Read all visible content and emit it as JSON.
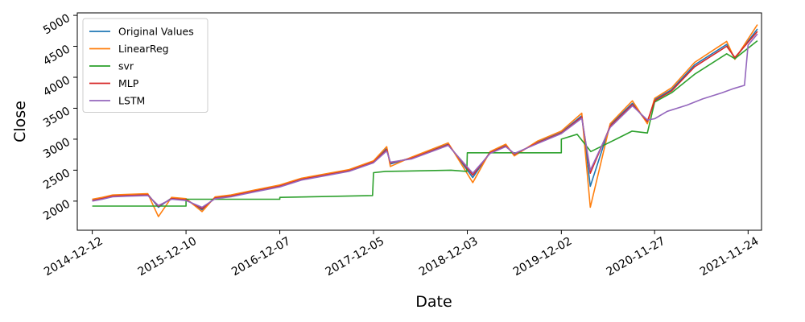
{
  "chart_data": {
    "type": "line",
    "title": "",
    "xlabel": "Date",
    "ylabel": "Close",
    "x_range": [
      "2014-10-15",
      "2022-01-15"
    ],
    "ylim": [
      1530,
      5040
    ],
    "x_ticks": [
      "2014-12-12",
      "2015-12-10",
      "2016-12-07",
      "2017-12-05",
      "2018-12-03",
      "2019-12-02",
      "2020-11-27",
      "2021-11-24"
    ],
    "y_ticks": [
      2000,
      2500,
      3000,
      3500,
      4000,
      4500,
      5000
    ],
    "grid": false,
    "legend_position": "top-left",
    "series": [
      {
        "name": "Original Values",
        "color": "#1f77b4",
        "points": [
          [
            "2014-12-12",
            2020
          ],
          [
            "2015-01-20",
            2050
          ],
          [
            "2015-03-01",
            2090
          ],
          [
            "2015-05-01",
            2100
          ],
          [
            "2015-07-15",
            2110
          ],
          [
            "2015-08-25",
            1900
          ],
          [
            "2015-10-15",
            2050
          ],
          [
            "2015-12-10",
            2030
          ],
          [
            "2016-02-10",
            1860
          ],
          [
            "2016-04-01",
            2060
          ],
          [
            "2016-06-01",
            2090
          ],
          [
            "2016-09-01",
            2170
          ],
          [
            "2016-12-07",
            2250
          ],
          [
            "2017-03-01",
            2360
          ],
          [
            "2017-06-01",
            2430
          ],
          [
            "2017-09-01",
            2500
          ],
          [
            "2017-12-05",
            2640
          ],
          [
            "2018-01-25",
            2850
          ],
          [
            "2018-02-08",
            2600
          ],
          [
            "2018-05-01",
            2700
          ],
          [
            "2018-09-20",
            2920
          ],
          [
            "2018-12-24",
            2380
          ],
          [
            "2019-03-01",
            2790
          ],
          [
            "2019-05-01",
            2900
          ],
          [
            "2019-06-03",
            2750
          ],
          [
            "2019-09-01",
            2950
          ],
          [
            "2019-12-02",
            3110
          ],
          [
            "2020-02-19",
            3380
          ],
          [
            "2020-03-23",
            2240
          ],
          [
            "2020-06-08",
            3230
          ],
          [
            "2020-09-02",
            3580
          ],
          [
            "2020-10-30",
            3270
          ],
          [
            "2020-11-27",
            3640
          ],
          [
            "2021-02-01",
            3800
          ],
          [
            "2021-05-01",
            4200
          ],
          [
            "2021-09-02",
            4530
          ],
          [
            "2021-10-04",
            4300
          ],
          [
            "2021-12-30",
            4780
          ]
        ]
      },
      {
        "name": "LinearReg",
        "color": "#ff7f0e",
        "points": [
          [
            "2014-12-12",
            2030
          ],
          [
            "2015-01-20",
            2060
          ],
          [
            "2015-03-01",
            2100
          ],
          [
            "2015-05-01",
            2110
          ],
          [
            "2015-07-15",
            2120
          ],
          [
            "2015-08-25",
            1750
          ],
          [
            "2015-10-15",
            2060
          ],
          [
            "2015-12-10",
            2040
          ],
          [
            "2016-02-10",
            1830
          ],
          [
            "2016-04-01",
            2070
          ],
          [
            "2016-06-01",
            2100
          ],
          [
            "2016-09-01",
            2180
          ],
          [
            "2016-12-07",
            2260
          ],
          [
            "2017-03-01",
            2370
          ],
          [
            "2017-06-01",
            2440
          ],
          [
            "2017-09-01",
            2510
          ],
          [
            "2017-12-05",
            2650
          ],
          [
            "2018-01-25",
            2880
          ],
          [
            "2018-02-08",
            2560
          ],
          [
            "2018-05-01",
            2710
          ],
          [
            "2018-09-20",
            2940
          ],
          [
            "2018-12-24",
            2300
          ],
          [
            "2019-03-01",
            2800
          ],
          [
            "2019-05-01",
            2920
          ],
          [
            "2019-06-03",
            2730
          ],
          [
            "2019-09-01",
            2970
          ],
          [
            "2019-12-02",
            3130
          ],
          [
            "2020-02-19",
            3420
          ],
          [
            "2020-03-23",
            1900
          ],
          [
            "2020-06-08",
            3250
          ],
          [
            "2020-09-02",
            3620
          ],
          [
            "2020-10-30",
            3250
          ],
          [
            "2020-11-27",
            3660
          ],
          [
            "2021-02-01",
            3830
          ],
          [
            "2021-05-01",
            4240
          ],
          [
            "2021-09-02",
            4580
          ],
          [
            "2021-10-04",
            4290
          ],
          [
            "2021-12-30",
            4850
          ]
        ]
      },
      {
        "name": "svr",
        "color": "#2ca02c",
        "points": [
          [
            "2014-12-12",
            1920
          ],
          [
            "2015-12-10",
            1920
          ],
          [
            "2015-12-10",
            2030
          ],
          [
            "2016-12-07",
            2030
          ],
          [
            "2016-12-07",
            2060
          ],
          [
            "2017-12-01",
            2090
          ],
          [
            "2017-12-05",
            2460
          ],
          [
            "2018-01-20",
            2480
          ],
          [
            "2018-06-01",
            2490
          ],
          [
            "2018-10-01",
            2500
          ],
          [
            "2018-12-01",
            2480
          ],
          [
            "2018-12-03",
            2780
          ],
          [
            "2019-12-02",
            2780
          ],
          [
            "2019-12-02",
            3000
          ],
          [
            "2020-02-01",
            3080
          ],
          [
            "2020-03-25",
            2800
          ],
          [
            "2020-07-01",
            3000
          ],
          [
            "2020-09-01",
            3130
          ],
          [
            "2020-10-30",
            3100
          ],
          [
            "2020-11-27",
            3600
          ],
          [
            "2021-02-01",
            3750
          ],
          [
            "2021-05-01",
            4050
          ],
          [
            "2021-09-02",
            4380
          ],
          [
            "2021-10-04",
            4300
          ],
          [
            "2021-12-30",
            4590
          ]
        ]
      },
      {
        "name": "MLP",
        "color": "#d62728",
        "points": [
          [
            "2014-12-12",
            2010
          ],
          [
            "2015-01-20",
            2040
          ],
          [
            "2015-03-01",
            2080
          ],
          [
            "2015-05-01",
            2090
          ],
          [
            "2015-07-15",
            2100
          ],
          [
            "2015-08-25",
            1920
          ],
          [
            "2015-10-15",
            2040
          ],
          [
            "2015-12-10",
            2020
          ],
          [
            "2016-02-10",
            1880
          ],
          [
            "2016-04-01",
            2050
          ],
          [
            "2016-06-01",
            2080
          ],
          [
            "2016-09-01",
            2160
          ],
          [
            "2016-12-07",
            2240
          ],
          [
            "2017-03-01",
            2350
          ],
          [
            "2017-06-01",
            2420
          ],
          [
            "2017-09-01",
            2490
          ],
          [
            "2017-12-05",
            2630
          ],
          [
            "2018-01-25",
            2830
          ],
          [
            "2018-02-08",
            2620
          ],
          [
            "2018-05-01",
            2690
          ],
          [
            "2018-09-20",
            2910
          ],
          [
            "2018-12-24",
            2420
          ],
          [
            "2019-03-01",
            2780
          ],
          [
            "2019-05-01",
            2890
          ],
          [
            "2019-06-03",
            2760
          ],
          [
            "2019-09-01",
            2940
          ],
          [
            "2019-12-02",
            3100
          ],
          [
            "2020-02-19",
            3360
          ],
          [
            "2020-03-23",
            2450
          ],
          [
            "2020-06-08",
            3210
          ],
          [
            "2020-09-02",
            3560
          ],
          [
            "2020-10-30",
            3290
          ],
          [
            "2020-11-27",
            3620
          ],
          [
            "2021-02-01",
            3780
          ],
          [
            "2021-05-01",
            4170
          ],
          [
            "2021-09-02",
            4500
          ],
          [
            "2021-10-04",
            4320
          ],
          [
            "2021-12-30",
            4740
          ]
        ]
      },
      {
        "name": "LSTM",
        "color": "#9467bd",
        "points": [
          [
            "2014-12-12",
            2000
          ],
          [
            "2015-01-20",
            2030
          ],
          [
            "2015-03-01",
            2070
          ],
          [
            "2015-05-01",
            2080
          ],
          [
            "2015-07-15",
            2090
          ],
          [
            "2015-08-25",
            1930
          ],
          [
            "2015-10-15",
            2030
          ],
          [
            "2015-12-10",
            2010
          ],
          [
            "2016-02-10",
            1900
          ],
          [
            "2016-04-01",
            2040
          ],
          [
            "2016-06-01",
            2070
          ],
          [
            "2016-09-01",
            2150
          ],
          [
            "2016-12-07",
            2230
          ],
          [
            "2017-03-01",
            2340
          ],
          [
            "2017-06-01",
            2410
          ],
          [
            "2017-09-01",
            2480
          ],
          [
            "2017-12-05",
            2620
          ],
          [
            "2018-01-25",
            2810
          ],
          [
            "2018-02-08",
            2630
          ],
          [
            "2018-05-01",
            2680
          ],
          [
            "2018-09-20",
            2900
          ],
          [
            "2018-12-24",
            2450
          ],
          [
            "2019-03-01",
            2770
          ],
          [
            "2019-05-01",
            2880
          ],
          [
            "2019-06-03",
            2770
          ],
          [
            "2019-09-01",
            2930
          ],
          [
            "2019-12-02",
            3090
          ],
          [
            "2020-02-19",
            3340
          ],
          [
            "2020-03-23",
            2500
          ],
          [
            "2020-06-08",
            3190
          ],
          [
            "2020-09-02",
            3540
          ],
          [
            "2020-10-30",
            3310
          ],
          [
            "2020-11-27",
            3330
          ],
          [
            "2021-01-15",
            3450
          ],
          [
            "2021-04-01",
            3550
          ],
          [
            "2021-06-01",
            3650
          ],
          [
            "2021-08-15",
            3750
          ],
          [
            "2021-10-01",
            3820
          ],
          [
            "2021-11-10",
            3870
          ],
          [
            "2021-11-24",
            4520
          ],
          [
            "2021-12-30",
            4700
          ]
        ]
      }
    ]
  }
}
